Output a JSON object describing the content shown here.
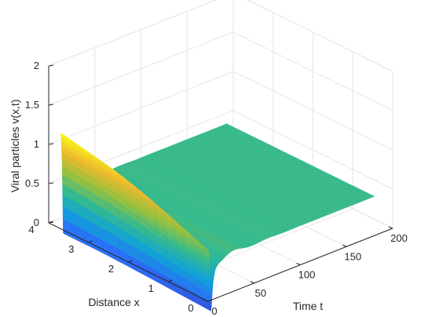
{
  "chart_data": {
    "type": "surface",
    "title": "",
    "xlabel": "Time t",
    "ylabel": "Distance x",
    "zlabel": "Viral particles v(x,t)",
    "xlim": [
      0,
      200
    ],
    "ylim": [
      0,
      4
    ],
    "zlim": [
      0,
      2
    ],
    "x_ticks": [
      "0",
      "50",
      "100",
      "150",
      "200"
    ],
    "y_ticks": [
      "0",
      "1",
      "2",
      "3",
      "4"
    ],
    "z_ticks": [
      "0",
      "0.5",
      "1",
      "1.5",
      "2"
    ],
    "grid": true,
    "colormap": [
      "#3e26a8",
      "#2c6ef7",
      "#11a2d8",
      "#34ba90",
      "#97c13e",
      "#edb92f",
      "#f9fb15"
    ],
    "surface": {
      "x_extent": [
        0,
        180
      ],
      "y_extent": [
        0,
        3.7
      ],
      "initial_profile": {
        "x": [
          0,
          0.5,
          1,
          1.5,
          2,
          2.5,
          3,
          3.5,
          3.7
        ],
        "z": [
          0.65,
          0.75,
          0.85,
          0.95,
          1.03,
          1.1,
          1.15,
          1.2,
          1.22
        ]
      },
      "initial_duration": 3,
      "trough_depth": -0.25,
      "oscillation_amplitude": 0.08,
      "steady_state": 0.5
    }
  }
}
